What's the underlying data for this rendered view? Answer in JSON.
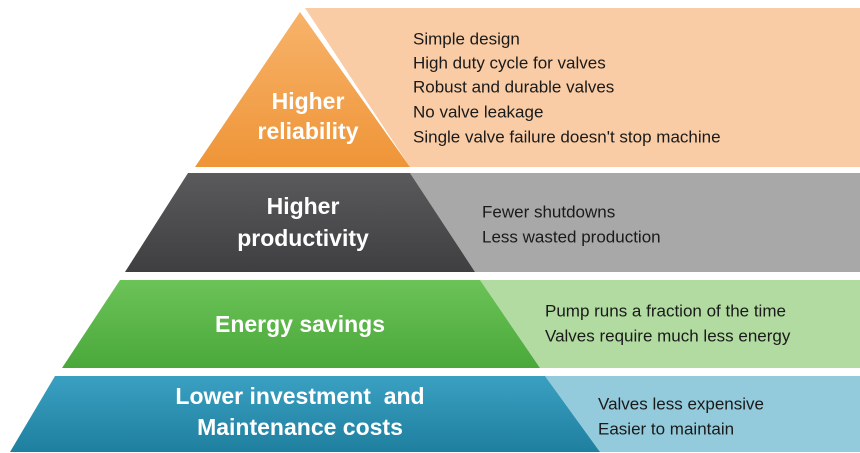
{
  "tiers": [
    {
      "label": [
        "Higher",
        "reliability"
      ],
      "points": [
        "Simple design",
        "High duty cycle for valves",
        "Robust and durable valves",
        "No valve leakage",
        "Single valve failure doesn't stop machine"
      ]
    },
    {
      "label": [
        "Higher",
        "productivity"
      ],
      "points": [
        "Fewer shutdowns",
        "Less wasted production"
      ]
    },
    {
      "label": [
        "Energy savings"
      ],
      "points": [
        "Pump runs a fraction of the time",
        "Valves require much less energy"
      ]
    },
    {
      "label": [
        "Lower investment  and",
        "Maintenance costs"
      ],
      "points": [
        "Valves less expensive",
        "Easier to maintain"
      ]
    }
  ]
}
